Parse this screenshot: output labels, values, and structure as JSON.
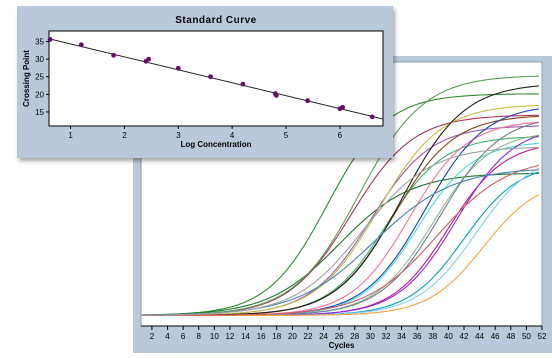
{
  "chart_data": [
    {
      "type": "scatter",
      "title": "Standard Curve",
      "xlabel": "Log Concentration",
      "ylabel": "Crossing Point",
      "xlim": [
        0.6,
        6.8
      ],
      "ylim": [
        11,
        38
      ],
      "x_ticks": [
        1,
        2,
        3,
        4,
        5,
        6
      ],
      "y_ticks": [
        15,
        20,
        25,
        30,
        35
      ],
      "grid": false,
      "points": [
        {
          "x": 0.62,
          "y": 35.6
        },
        {
          "x": 1.2,
          "y": 34.1
        },
        {
          "x": 1.8,
          "y": 31.1
        },
        {
          "x": 2.4,
          "y": 29.4
        },
        {
          "x": 2.45,
          "y": 30.0
        },
        {
          "x": 3.0,
          "y": 27.4
        },
        {
          "x": 3.6,
          "y": 25.0
        },
        {
          "x": 4.2,
          "y": 22.9
        },
        {
          "x": 4.8,
          "y": 20.2
        },
        {
          "x": 4.82,
          "y": 19.7
        },
        {
          "x": 5.4,
          "y": 18.2
        },
        {
          "x": 6.0,
          "y": 15.9
        },
        {
          "x": 6.05,
          "y": 16.3
        },
        {
          "x": 6.6,
          "y": 13.6
        }
      ],
      "fit_line": {
        "x": [
          0.6,
          6.8
        ],
        "y": [
          35.8,
          13.0
        ]
      },
      "colors": {
        "points": "#6b0a6b",
        "line": "#222222",
        "background": "#ffffff",
        "panel": "#b9c9db"
      }
    },
    {
      "type": "line",
      "title": "",
      "xlabel": "Cycles",
      "ylabel": "",
      "xlim": [
        0.6,
        52
      ],
      "x_ticks": [
        2,
        4,
        6,
        8,
        10,
        12,
        14,
        16,
        18,
        20,
        22,
        24,
        26,
        28,
        30,
        32,
        34,
        36,
        38,
        40,
        42,
        44,
        46,
        48,
        50,
        52
      ],
      "ylim": [
        0,
        100
      ],
      "baseline": 4,
      "grid": false,
      "series": [
        {
          "midpoint": 24.5,
          "plateau": 88,
          "steepness": 0.26,
          "color": "#2e8b2e"
        },
        {
          "midpoint": 26.0,
          "plateau": 58,
          "steepness": 0.22,
          "color": "#1e7a2e"
        },
        {
          "midpoint": 27.5,
          "plateau": 80,
          "steepness": 0.25,
          "color": "#b03060"
        },
        {
          "midpoint": 28.5,
          "plateau": 95,
          "steepness": 0.24,
          "color": "#5aa05a"
        },
        {
          "midpoint": 30.0,
          "plateau": 76,
          "steepness": 0.26,
          "color": "#9b59b6"
        },
        {
          "midpoint": 31.0,
          "plateau": 84,
          "steepness": 0.25,
          "color": "#c0c040"
        },
        {
          "midpoint": 32.0,
          "plateau": 72,
          "steepness": 0.27,
          "color": "#3cb371"
        },
        {
          "midpoint": 33.0,
          "plateau": 80,
          "steepness": 0.26,
          "color": "#8b4513"
        },
        {
          "midpoint": 34.0,
          "plateau": 92,
          "steepness": 0.25,
          "color": "#222222"
        },
        {
          "midpoint": 35.0,
          "plateau": 78,
          "steepness": 0.27,
          "color": "#ff6f91"
        },
        {
          "midpoint": 36.0,
          "plateau": 70,
          "steepness": 0.28,
          "color": "#40e0d0"
        },
        {
          "midpoint": 37.0,
          "plateau": 84,
          "steepness": 0.26,
          "color": "#1f3fbf"
        },
        {
          "midpoint": 38.0,
          "plateau": 74,
          "steepness": 0.27,
          "color": "#8fbc8f"
        },
        {
          "midpoint": 39.0,
          "plateau": 80,
          "steepness": 0.26,
          "color": "#708090"
        },
        {
          "midpoint": 40.0,
          "plateau": 70,
          "steepness": 0.28,
          "color": "#c71585"
        },
        {
          "midpoint": 41.0,
          "plateau": 76,
          "steepness": 0.27,
          "color": "#8a2be2"
        },
        {
          "midpoint": 42.0,
          "plateau": 62,
          "steepness": 0.28,
          "color": "#00a0c0"
        },
        {
          "midpoint": 43.5,
          "plateau": 66,
          "steepness": 0.27,
          "color": "#87cefa"
        },
        {
          "midpoint": 44.5,
          "plateau": 56,
          "steepness": 0.28,
          "color": "#ffa040"
        },
        {
          "midpoint": 38.5,
          "plateau": 64,
          "steepness": 0.22,
          "color": "#d06060"
        },
        {
          "midpoint": 30.5,
          "plateau": 60,
          "steepness": 0.2,
          "color": "#4682b4"
        },
        {
          "midpoint": 29.0,
          "plateau": 68,
          "steepness": 0.23,
          "color": "#a0a0a0"
        }
      ],
      "colors": {
        "background": "#ffffff",
        "panel": "#b9c9db",
        "axis": "#000000"
      }
    }
  ]
}
